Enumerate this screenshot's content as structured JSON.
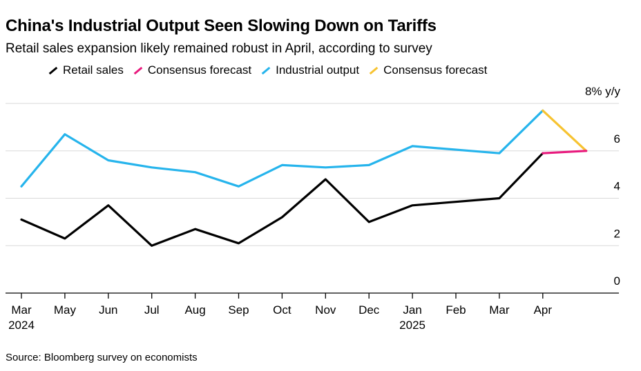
{
  "title": "China's Industrial Output Seen Slowing Down on Tariffs",
  "subtitle": "Retail sales expansion likely remained robust in April, according to survey",
  "source": "Source: Bloomberg survey on economists",
  "colors": {
    "retail": "#000000",
    "retail_forecast": "#e8197d",
    "industrial": "#26b4ec",
    "industrial_forecast": "#f7c331",
    "grid": "#d9d9d9",
    "axis": "#000000"
  },
  "legend": [
    {
      "label": "Retail sales",
      "color": "#000000"
    },
    {
      "label": "Consensus forecast",
      "color": "#e8197d"
    },
    {
      "label": "Industrial output",
      "color": "#26b4ec"
    },
    {
      "label": "Consensus forecast",
      "color": "#f7c331"
    }
  ],
  "chart_data": {
    "type": "line",
    "title": "China's Industrial Output Seen Slowing Down on Tariffs",
    "subtitle": "Retail sales expansion likely remained robust in April, according to survey",
    "ylabel": "8% y/y",
    "ylim": [
      0,
      8
    ],
    "yticks": [
      0,
      2,
      4,
      6
    ],
    "ytick_labels": [
      "0",
      "2",
      "4",
      "6"
    ],
    "grid": true,
    "x": [
      "2024-03",
      "2024-05",
      "2024-06",
      "2024-07",
      "2024-08",
      "2024-09",
      "2024-10",
      "2024-11",
      "2024-12",
      "2025-01",
      "2025-02",
      "2025-03",
      "2025-04",
      "2025-04-forecast"
    ],
    "xtick_labels": [
      {
        "label": "Mar",
        "year": "2024"
      },
      {
        "label": "May",
        "year": ""
      },
      {
        "label": "Jun",
        "year": ""
      },
      {
        "label": "Jul",
        "year": ""
      },
      {
        "label": "Aug",
        "year": ""
      },
      {
        "label": "Sep",
        "year": ""
      },
      {
        "label": "Oct",
        "year": ""
      },
      {
        "label": "Nov",
        "year": ""
      },
      {
        "label": "Dec",
        "year": ""
      },
      {
        "label": "Jan",
        "year": "2025"
      },
      {
        "label": "Feb",
        "year": ""
      },
      {
        "label": "Mar",
        "year": ""
      },
      {
        "label": "Apr",
        "year": ""
      }
    ],
    "series": [
      {
        "name": "Retail sales",
        "color": "#000000",
        "points": [
          [
            0,
            3.1
          ],
          [
            1,
            2.3
          ],
          [
            2,
            3.7
          ],
          [
            3,
            2.0
          ],
          [
            4,
            2.7
          ],
          [
            5,
            2.1
          ],
          [
            6,
            3.2
          ],
          [
            7,
            4.8
          ],
          [
            8,
            3.0
          ],
          [
            9,
            3.7
          ],
          [
            11,
            4.0
          ],
          [
            12,
            5.9
          ]
        ]
      },
      {
        "name": "Consensus forecast",
        "color": "#e8197d",
        "points": [
          [
            12,
            5.9
          ],
          [
            13,
            6.0
          ]
        ]
      },
      {
        "name": "Industrial output",
        "color": "#26b4ec",
        "points": [
          [
            0,
            4.5
          ],
          [
            1,
            6.7
          ],
          [
            2,
            5.6
          ],
          [
            3,
            5.3
          ],
          [
            4,
            5.1
          ],
          [
            5,
            4.5
          ],
          [
            6,
            5.4
          ],
          [
            7,
            5.3
          ],
          [
            8,
            5.4
          ],
          [
            9,
            6.2
          ],
          [
            11,
            5.9
          ],
          [
            12,
            7.7
          ]
        ]
      },
      {
        "name": "Consensus forecast",
        "color": "#f7c331",
        "points": [
          [
            12,
            7.7
          ],
          [
            13,
            6.0
          ]
        ]
      }
    ]
  }
}
